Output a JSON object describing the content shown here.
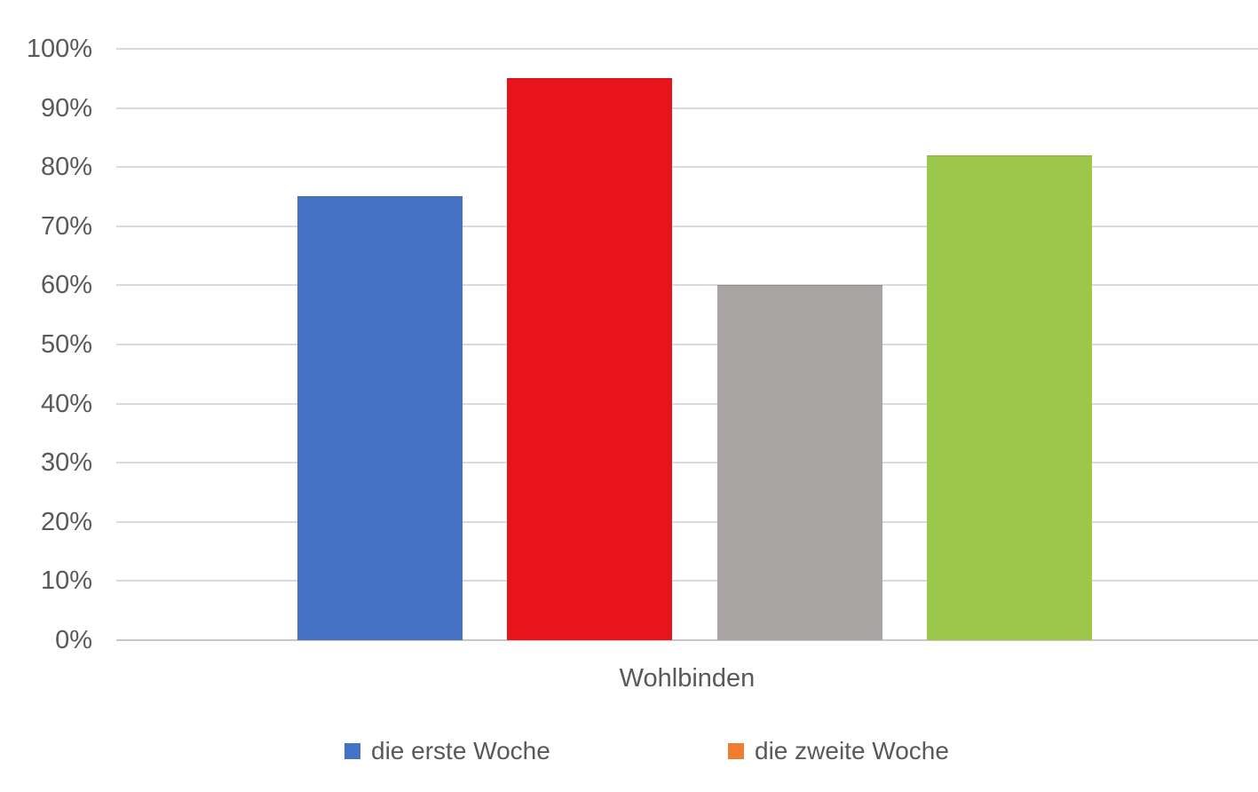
{
  "chart_data": {
    "type": "bar",
    "title": "",
    "category_label": "Wohlbinden",
    "categories": [
      "Wohlbinden"
    ],
    "bars": [
      {
        "value": 75,
        "color": "#4472C4"
      },
      {
        "value": 95,
        "color": "#E8131B"
      },
      {
        "value": 60,
        "color": "#A7A4A3"
      },
      {
        "value": 82,
        "color": "#9BC74B"
      }
    ],
    "y_axis": {
      "min": 0,
      "max": 100,
      "step": 10,
      "unit": "%",
      "tick_labels": [
        "0%",
        "10%",
        "20%",
        "30%",
        "40%",
        "50%",
        "60%",
        "70%",
        "80%",
        "90%",
        "100%"
      ]
    },
    "grid": true,
    "legend_position": "bottom",
    "legend": {
      "items": [
        {
          "label": "die erste Woche",
          "color": "#4472C4"
        },
        {
          "label": "die zweite Woche",
          "color": "#ED7D31"
        }
      ]
    },
    "colors": {
      "axis_text": "#595959",
      "gridline": "#DADADA",
      "baseline": "#C9C7C6",
      "background": "#FFFFFF"
    }
  }
}
